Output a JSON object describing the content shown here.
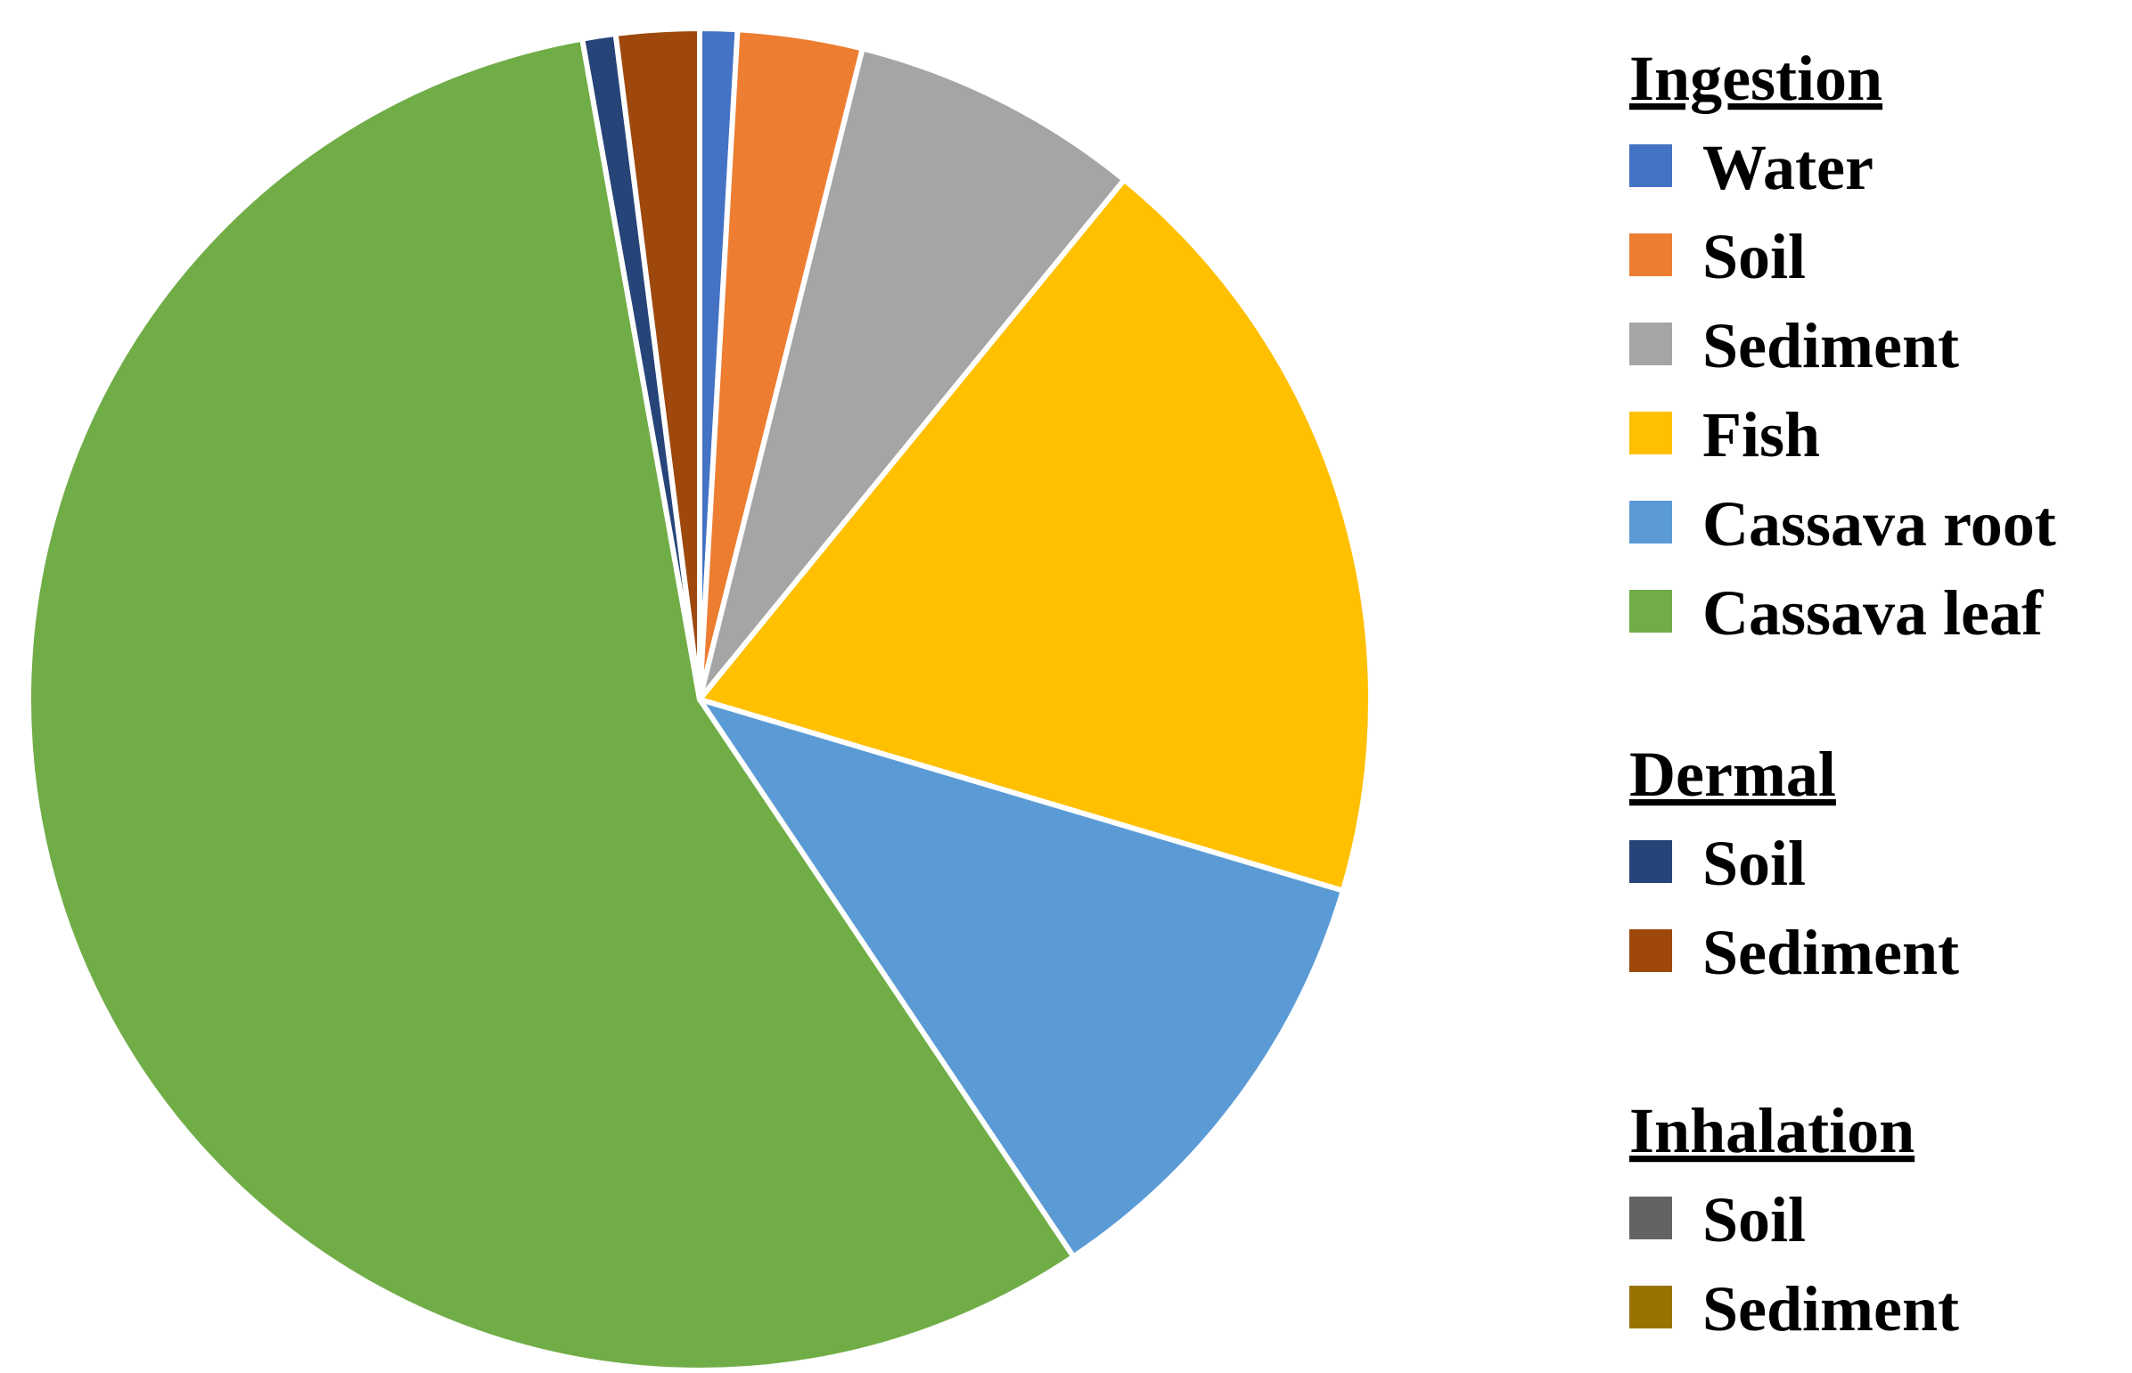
{
  "chart_data": {
    "type": "pie",
    "slices": [
      {
        "group": "Ingestion",
        "label": "Water",
        "value": 0.9,
        "color": "#4472C4"
      },
      {
        "group": "Ingestion",
        "label": "Soil",
        "value": 3.0,
        "color": "#ED7D31"
      },
      {
        "group": "Ingestion",
        "label": "Sediment",
        "value": 7.0,
        "color": "#A5A5A5"
      },
      {
        "group": "Ingestion",
        "label": "Fish",
        "value": 18.7,
        "color": "#FFC000"
      },
      {
        "group": "Ingestion",
        "label": "Cassava root",
        "value": 11.0,
        "color": "#5B9BD5"
      },
      {
        "group": "Ingestion",
        "label": "Cassava leaf",
        "value": 56.6,
        "color": "#70AD47"
      },
      {
        "group": "Dermal",
        "label": "Soil",
        "value": 0.8,
        "color": "#264478"
      },
      {
        "group": "Dermal",
        "label": "Sediment",
        "value": 2.0,
        "color": "#9E480E"
      },
      {
        "group": "Inhalation",
        "label": "Soil",
        "value": 0.0,
        "color": "#636363"
      },
      {
        "group": "Inhalation",
        "label": "Sediment",
        "value": 0.0,
        "color": "#997300"
      }
    ],
    "legend_groups": [
      "Ingestion",
      "Dermal",
      "Inhalation"
    ],
    "legend_position": "right"
  }
}
